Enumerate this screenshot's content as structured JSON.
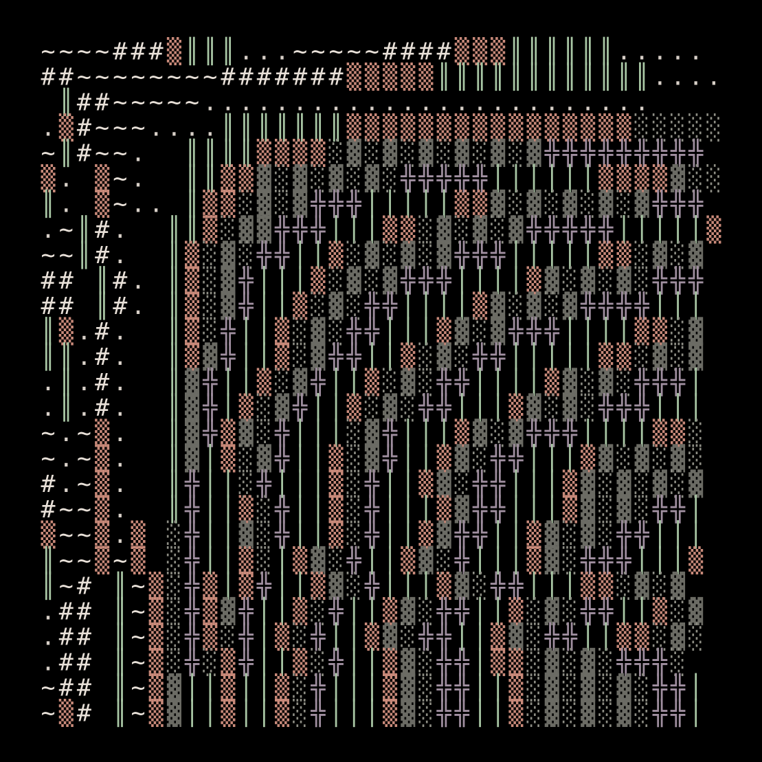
{
  "grid": [
    "~~~~###▒║║║...~~~~~####▒▒▒║║║║║║.....",
    "##~~~~~~~~#######▒▒▒▒▒║║║║║║║║║║║║....",
    " ║##~~~~~.........................",
    ".▒#~~~....║║║║║║║▒▒▒▒▒▒▒▒▒▒▒▒▒▒▒▒░░░░░",
    "~║#~~.  ║║║║▒▒▒▒░▓░▓░▓░▓░▓░▓╬╬╬╬╬╬╬╬╬",
    "▒. ▒~.  ║║▒▒▓░▓░▓░▓░╬╬╬╬╬││││││▒▒▒▒▓░░",
    "║. ▒~.. ║▒▒░▓░▓╬╬╬│││││▒▒▓░▓░▓░▓░▓╬╬╬",
    ".~║#.  ║║▒░▓▓╬╬╬│││▒▒░▓░▓░▓╬╬╬╬╬│││││▒",
    "~~║#.  ║▒░▓░╬╬││▒░▓░▓░▓╬╬╬│││││▒▒░▓░▓",
    "## ║#. ║▒░▓╬│││▒░▓░▓╬╬╬││││▒▓░▓░▓░╬╬╬",
    "## ║#. ║▒░▓╬││▒░▓░╬╬││││▒▓░▓░▓╬╬╬╬│││",
    "║▒.#.  ║▒░╬││▒░▓░╬╬│││▒▓░▓╬╬╬││││▒▒░▓",
    "║║.#.  ║▒▓╬││▒░▓╬╬││▒░▓░╬╬│││││▒▒░▓░▓",
    ".║.#.  ║▓╬││▒░▓╬││▒░▓░╬╬││││▒▓░▓░╬╬╬│",
    ".║.#.  ║▓╬│▒░▓╬││▒░▓░╬╬│││▒▓░▓░╬╬╬│││",
    "~.~▒.  ║▓╬▒▓░╬│││░▓╬│││▒▓░▓╬╬╬││││▒▒░",
    "~.~▒.  ║▓│▒░▓╬││▒░▓╬││▒▓░╬╬│││▒▓░▓░▓░",
    "#.~▒.  ║╬││░╬│││▒░╬││▒▓░╬╬│││▒▓░▓░▓░▓",
    "#~~▒.  ║╬││▒░╬││▒░╬│││▒▓╬╬│││▒▓░▓░╬╬│",
    "▒~~▒.▒ ░╬││▓░╬││▒░╬││▒▓╬╬││▒▓░▓░╬╬│││",
    "║~~▒~▒ ░╬││▒░│▒▓░╬││▒▓░╬│││▒▓░╬╬╬│││▒",
    "║~# ║~▒░╬▒│▒╬││▒▓░╬│││▒▓░╬╬│││▒▒░▓░▓",
    ".## ║~▒░╬▒▓╬││▒░╬││▒▓░╬╬││▒░▓░╬╬││▒░▓",
    ".## ║~▒░╬▒░╬│▒░╬││▒▓░╬╬││▒▓░╬╬││▒▒░▓░",
    ".## ║~▒░╬░▒╬││▒░╬││▒▓░╬╬│▒▒░▓░▓░╬╬╬░",
    "~## ║~▒▓││▒││▒░╬│││▒▓░╬╬││▒░▓░▓░▓░╬╬│",
    "~▒# ║~▒▓││▒││▒░╬│││▒▓░╬╬││▒░▓░▓░▓░╬╬│"
  ]
}
